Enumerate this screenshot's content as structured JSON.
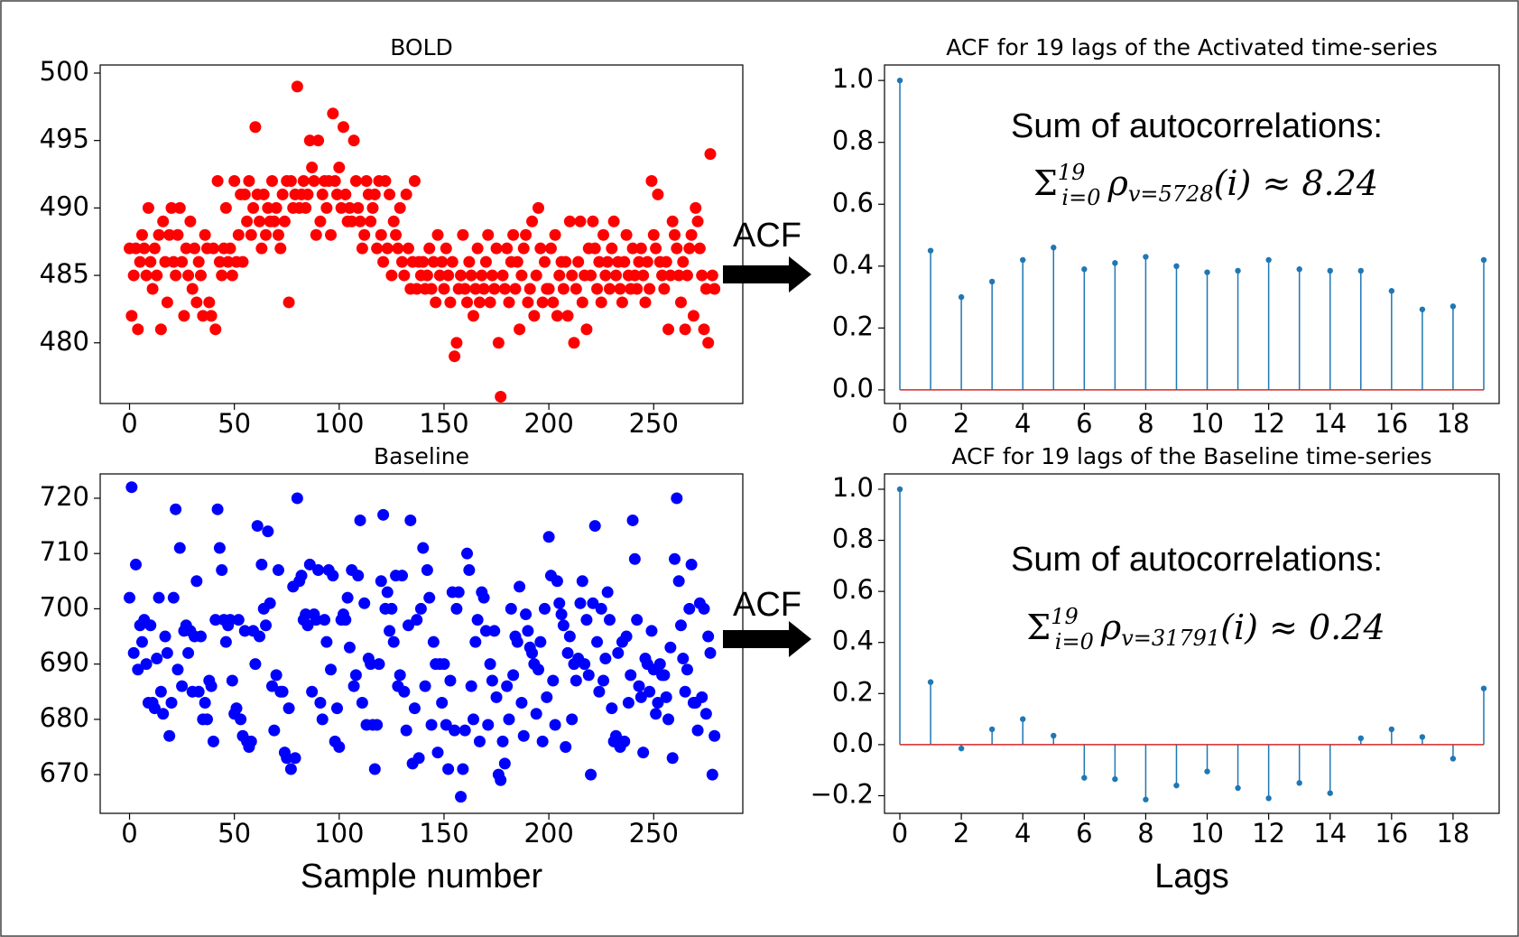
{
  "chart_data": [
    {
      "type": "scatter",
      "title": "BOLD",
      "annotation": "ACF",
      "color": "#ff0000",
      "x": [
        0,
        1,
        2,
        3,
        4,
        5,
        6,
        7,
        8,
        9,
        10,
        11,
        12,
        13,
        14,
        15,
        16,
        17,
        18,
        19,
        20,
        21,
        22,
        23,
        24,
        25,
        26,
        27,
        28,
        29,
        30,
        31,
        32,
        33,
        34,
        35,
        36,
        37,
        38,
        39,
        40,
        41,
        42,
        43,
        44,
        45,
        46,
        47,
        48,
        49,
        50,
        51,
        52,
        53,
        54,
        55,
        56,
        57,
        58,
        59,
        60,
        61,
        62,
        63,
        64,
        65,
        66,
        67,
        68,
        69,
        70,
        71,
        72,
        73,
        74,
        75,
        76,
        77,
        78,
        79,
        80,
        81,
        82,
        83,
        84,
        85,
        86,
        87,
        88,
        89,
        90,
        91,
        92,
        93,
        94,
        95,
        96,
        97,
        98,
        99,
        100,
        101,
        102,
        103,
        104,
        105,
        106,
        107,
        108,
        109,
        110,
        111,
        112,
        113,
        114,
        115,
        116,
        117,
        118,
        119,
        120,
        121,
        122,
        123,
        124,
        125,
        126,
        127,
        128,
        129,
        130,
        131,
        132,
        133,
        134,
        135,
        136,
        137,
        138,
        139,
        140,
        141,
        142,
        143,
        144,
        145,
        146,
        147,
        148,
        149,
        150,
        151,
        152,
        153,
        154,
        155,
        156,
        157,
        158,
        159,
        160,
        161,
        162,
        163,
        164,
        165,
        166,
        167,
        168,
        169,
        170,
        171,
        172,
        173,
        174,
        175,
        176,
        177,
        178,
        179,
        180,
        181,
        182,
        183,
        184,
        185,
        186,
        187,
        188,
        189,
        190,
        191,
        192,
        193,
        194,
        195,
        196,
        197,
        198,
        199,
        200,
        201,
        202,
        203,
        204,
        205,
        206,
        207,
        208,
        209,
        210,
        211,
        212,
        213,
        214,
        215,
        216,
        217,
        218,
        219,
        220,
        221,
        222,
        223,
        224,
        225,
        226,
        227,
        228,
        229,
        230,
        231,
        232,
        233,
        234,
        235,
        236,
        237,
        238,
        239,
        240,
        241,
        242,
        243,
        244,
        245,
        246,
        247,
        248,
        249,
        250,
        251,
        252,
        253,
        254,
        255,
        256,
        257,
        258,
        259,
        260,
        261,
        262,
        263,
        264,
        265,
        266,
        267,
        268,
        269,
        270,
        271,
        272,
        273,
        274,
        275,
        276,
        277,
        278,
        279
      ],
      "values": [
        487,
        482,
        485,
        487,
        481,
        486,
        488,
        487,
        485,
        490,
        486,
        484,
        487,
        485,
        488,
        481,
        489,
        486,
        483,
        488,
        490,
        486,
        485,
        488,
        490,
        486,
        482,
        487,
        485,
        489,
        484,
        487,
        483,
        486,
        485,
        482,
        488,
        487,
        483,
        482,
        487,
        481,
        492,
        486,
        485,
        487,
        490,
        486,
        487,
        485,
        492,
        486,
        488,
        491,
        486,
        491,
        489,
        492,
        488,
        490,
        496,
        491,
        489,
        487,
        491,
        488,
        490,
        489,
        492,
        489,
        490,
        488,
        487,
        491,
        489,
        492,
        483,
        492,
        490,
        491,
        499,
        490,
        491,
        492,
        490,
        491,
        495,
        493,
        492,
        488,
        495,
        489,
        491,
        492,
        490,
        492,
        488,
        497,
        492,
        491,
        493,
        490,
        496,
        491,
        489,
        490,
        489,
        495,
        492,
        490,
        489,
        487,
        488,
        492,
        491,
        489,
        490,
        491,
        487,
        492,
        488,
        486,
        492,
        487,
        491,
        485,
        489,
        488,
        487,
        490,
        486,
        485,
        491,
        487,
        484,
        486,
        492,
        484,
        486,
        485,
        486,
        484,
        485,
        487,
        484,
        486,
        483,
        488,
        485,
        486,
        484,
        487,
        485,
        483,
        486,
        479,
        480,
        484,
        485,
        488,
        484,
        483,
        486,
        485,
        482,
        484,
        487,
        483,
        485,
        484,
        486,
        488,
        483,
        485,
        484,
        487,
        480,
        476,
        485,
        484,
        487,
        483,
        486,
        488,
        484,
        486,
        481,
        485,
        487,
        488,
        483,
        484,
        489,
        482,
        485,
        490,
        487,
        483,
        486,
        484,
        484,
        487,
        483,
        488,
        482,
        485,
        486,
        484,
        486,
        482,
        489,
        485,
        480,
        484,
        486,
        489,
        483,
        485,
        481,
        487,
        485,
        489,
        487,
        484,
        486,
        483,
        488,
        485,
        486,
        484,
        487,
        489,
        485,
        486,
        484,
        483,
        486,
        488,
        485,
        484,
        487,
        485,
        484,
        486,
        487,
        485,
        483,
        486,
        484,
        492,
        488,
        487,
        491,
        486,
        485,
        484,
        486,
        481,
        485,
        489,
        488,
        487,
        485,
        483,
        486,
        481,
        485,
        487,
        488,
        482,
        490,
        489,
        487,
        485,
        481,
        484,
        480,
        494,
        485,
        484
      ],
      "xlim": [
        -14,
        292.5
      ],
      "xticks": [
        0,
        50,
        100,
        150,
        200,
        250
      ],
      "ylim": [
        475.5,
        500.6
      ],
      "yticks": [
        480,
        485,
        490,
        495,
        500
      ]
    },
    {
      "type": "stem",
      "title": "ACF for 19 lags of the Activated time-series",
      "annotation": "Sum of autocorrelations:",
      "formula": {
        "symbol": "Σ",
        "sup": "19",
        "sub": "i=0",
        "rho": "ρ",
        "rho_sub": "v=5728",
        "tail": "(i) ≈ 8.24"
      },
      "color": "#1f77b4",
      "baseline_color": "#d62728",
      "x": [
        0,
        1,
        2,
        3,
        4,
        5,
        6,
        7,
        8,
        9,
        10,
        11,
        12,
        13,
        14,
        15,
        16,
        17,
        18,
        19
      ],
      "values": [
        1.0,
        0.45,
        0.3,
        0.35,
        0.42,
        0.46,
        0.39,
        0.41,
        0.43,
        0.4,
        0.38,
        0.385,
        0.42,
        0.39,
        0.385,
        0.385,
        0.32,
        0.26,
        0.27,
        0.42
      ],
      "xlim": [
        -0.5,
        19.5
      ],
      "xticks": [
        0,
        2,
        4,
        6,
        8,
        10,
        12,
        14,
        16,
        18
      ],
      "ylim": [
        -0.044,
        1.05
      ],
      "yticks": [
        {
          "value": 0,
          "label": "0.0"
        },
        0.2,
        0.4,
        0.6,
        0.8,
        {
          "value": 1,
          "label": "1.0"
        }
      ]
    },
    {
      "type": "scatter",
      "title": "Baseline",
      "annotation": "ACF",
      "xlabel": "Sample number",
      "color": "#0000ff",
      "x": [
        0,
        1,
        2,
        3,
        4,
        5,
        6,
        7,
        8,
        9,
        10,
        11,
        12,
        13,
        14,
        15,
        16,
        17,
        18,
        19,
        20,
        21,
        22,
        23,
        24,
        25,
        26,
        27,
        28,
        29,
        30,
        31,
        32,
        33,
        34,
        35,
        36,
        37,
        38,
        39,
        40,
        41,
        42,
        43,
        44,
        45,
        46,
        47,
        48,
        49,
        50,
        51,
        52,
        53,
        54,
        55,
        56,
        57,
        58,
        59,
        60,
        61,
        62,
        63,
        64,
        65,
        66,
        67,
        68,
        69,
        70,
        71,
        72,
        73,
        74,
        75,
        76,
        77,
        78,
        79,
        80,
        81,
        82,
        83,
        84,
        85,
        86,
        87,
        88,
        89,
        90,
        91,
        92,
        93,
        94,
        95,
        96,
        97,
        98,
        99,
        100,
        101,
        102,
        103,
        104,
        105,
        106,
        107,
        108,
        109,
        110,
        111,
        112,
        113,
        114,
        115,
        116,
        117,
        118,
        119,
        120,
        121,
        122,
        123,
        124,
        125,
        126,
        127,
        128,
        129,
        130,
        131,
        132,
        133,
        134,
        135,
        136,
        137,
        138,
        139,
        140,
        141,
        142,
        143,
        144,
        145,
        146,
        147,
        148,
        149,
        150,
        151,
        152,
        153,
        154,
        155,
        156,
        157,
        158,
        159,
        160,
        161,
        162,
        163,
        164,
        165,
        166,
        167,
        168,
        169,
        170,
        171,
        172,
        173,
        174,
        175,
        176,
        177,
        178,
        179,
        180,
        181,
        182,
        183,
        184,
        185,
        186,
        187,
        188,
        189,
        190,
        191,
        192,
        193,
        194,
        195,
        196,
        197,
        198,
        199,
        200,
        201,
        202,
        203,
        204,
        205,
        206,
        207,
        208,
        209,
        210,
        211,
        212,
        213,
        214,
        215,
        216,
        217,
        218,
        219,
        220,
        221,
        222,
        223,
        224,
        225,
        226,
        227,
        228,
        229,
        230,
        231,
        232,
        233,
        234,
        235,
        236,
        237,
        238,
        239,
        240,
        241,
        242,
        243,
        244,
        245,
        246,
        247,
        248,
        249,
        250,
        251,
        252,
        253,
        254,
        255,
        256,
        257,
        258,
        259,
        260,
        261,
        262,
        263,
        264,
        265,
        266,
        267,
        268,
        269,
        270,
        271,
        272,
        273,
        274,
        275,
        276,
        277,
        278,
        279
      ],
      "values": [
        702,
        722,
        692,
        708,
        689,
        697,
        694,
        698,
        690,
        683,
        697,
        683,
        682,
        691,
        702,
        685,
        681,
        695,
        692,
        677,
        683,
        702,
        718,
        689,
        711,
        686,
        696,
        697,
        692,
        696,
        685,
        695,
        705,
        685,
        695,
        680,
        683,
        680,
        687,
        686,
        676,
        698,
        718,
        711,
        707,
        698,
        694,
        697,
        698,
        687,
        681,
        682,
        698,
        680,
        677,
        696,
        676,
        675,
        676,
        696,
        690,
        715,
        695,
        708,
        700,
        697,
        714,
        701,
        686,
        678,
        688,
        707,
        685,
        685,
        674,
        673,
        682,
        671,
        704,
        673,
        720,
        705,
        706,
        698,
        699,
        697,
        708,
        685,
        699,
        698,
        707,
        683,
        680,
        698,
        694,
        707,
        689,
        706,
        676,
        682,
        675,
        698,
        699,
        698,
        702,
        693,
        707,
        686,
        688,
        706,
        716,
        683,
        701,
        679,
        691,
        690,
        679,
        671,
        679,
        690,
        705,
        717,
        700,
        703,
        696,
        700,
        694,
        706,
        686,
        688,
        706,
        685,
        678,
        697,
        716,
        672,
        682,
        698,
        673,
        700,
        711,
        686,
        707,
        702,
        679,
        694,
        690,
        674,
        690,
        683,
        690,
        679,
        671,
        687,
        703,
        678,
        700,
        703,
        666,
        671,
        678,
        710,
        707,
        686,
        680,
        694,
        698,
        676,
        703,
        702,
        696,
        679,
        690,
        687,
        696,
        684,
        670,
        669,
        676,
        672,
        686,
        680,
        700,
        688,
        695,
        694,
        704,
        683,
        677,
        699,
        696,
        693,
        692,
        690,
        681,
        689,
        694,
        676,
        700,
        684,
        713,
        706,
        687,
        679,
        705,
        701,
        699,
        697,
        675,
        692,
        695,
        680,
        690,
        687,
        691,
        701,
        705,
        690,
        698,
        688,
        670,
        701,
        715,
        694,
        685,
        700,
        687,
        691,
        703,
        698,
        682,
        676,
        677,
        692,
        675,
        694,
        676,
        695,
        683,
        688,
        716,
        709,
        698,
        686,
        684,
        674,
        691,
        690,
        685,
        696,
        689,
        681,
        683,
        690,
        688,
        688,
        684,
        680,
        693,
        673,
        709,
        720,
        705,
        697,
        691,
        685,
        689,
        700,
        708,
        683,
        683,
        678,
        701,
        684,
        700,
        681,
        695,
        692,
        670,
        677
      ],
      "xlim": [
        -14,
        292.5
      ],
      "xticks": [
        0,
        50,
        100,
        150,
        200,
        250
      ],
      "ylim": [
        663,
        724.4
      ],
      "yticks": [
        670,
        680,
        690,
        700,
        710,
        720
      ]
    },
    {
      "type": "stem",
      "title": "ACF for 19 lags of the Baseline time-series",
      "annotation": "Sum of autocorrelations:",
      "xlabel": "Lags",
      "formula": {
        "symbol": "Σ",
        "sup": "19",
        "sub": "i=0",
        "rho": "ρ",
        "rho_sub": "v=31791",
        "tail": "(i) ≈ 0.24"
      },
      "color": "#1f77b4",
      "baseline_color": "#d62728",
      "x": [
        0,
        1,
        2,
        3,
        4,
        5,
        6,
        7,
        8,
        9,
        10,
        11,
        12,
        13,
        14,
        15,
        16,
        17,
        18,
        19
      ],
      "values": [
        1.0,
        0.245,
        -0.015,
        0.06,
        0.1,
        0.035,
        -0.13,
        -0.135,
        -0.215,
        -0.16,
        -0.105,
        -0.17,
        -0.21,
        -0.15,
        -0.19,
        0.025,
        0.06,
        0.03,
        -0.055,
        0.22
      ],
      "xlim": [
        -0.5,
        19.5
      ],
      "xticks": [
        0,
        2,
        4,
        6,
        8,
        10,
        12,
        14,
        16,
        18
      ],
      "ylim": [
        -0.269,
        1.06
      ],
      "yticks": [
        {
          "value": -0.2,
          "label": "−0.2"
        },
        {
          "value": 0,
          "label": "0.0"
        },
        0.2,
        0.4,
        0.6,
        0.8,
        {
          "value": 1,
          "label": "1.0"
        }
      ]
    }
  ]
}
